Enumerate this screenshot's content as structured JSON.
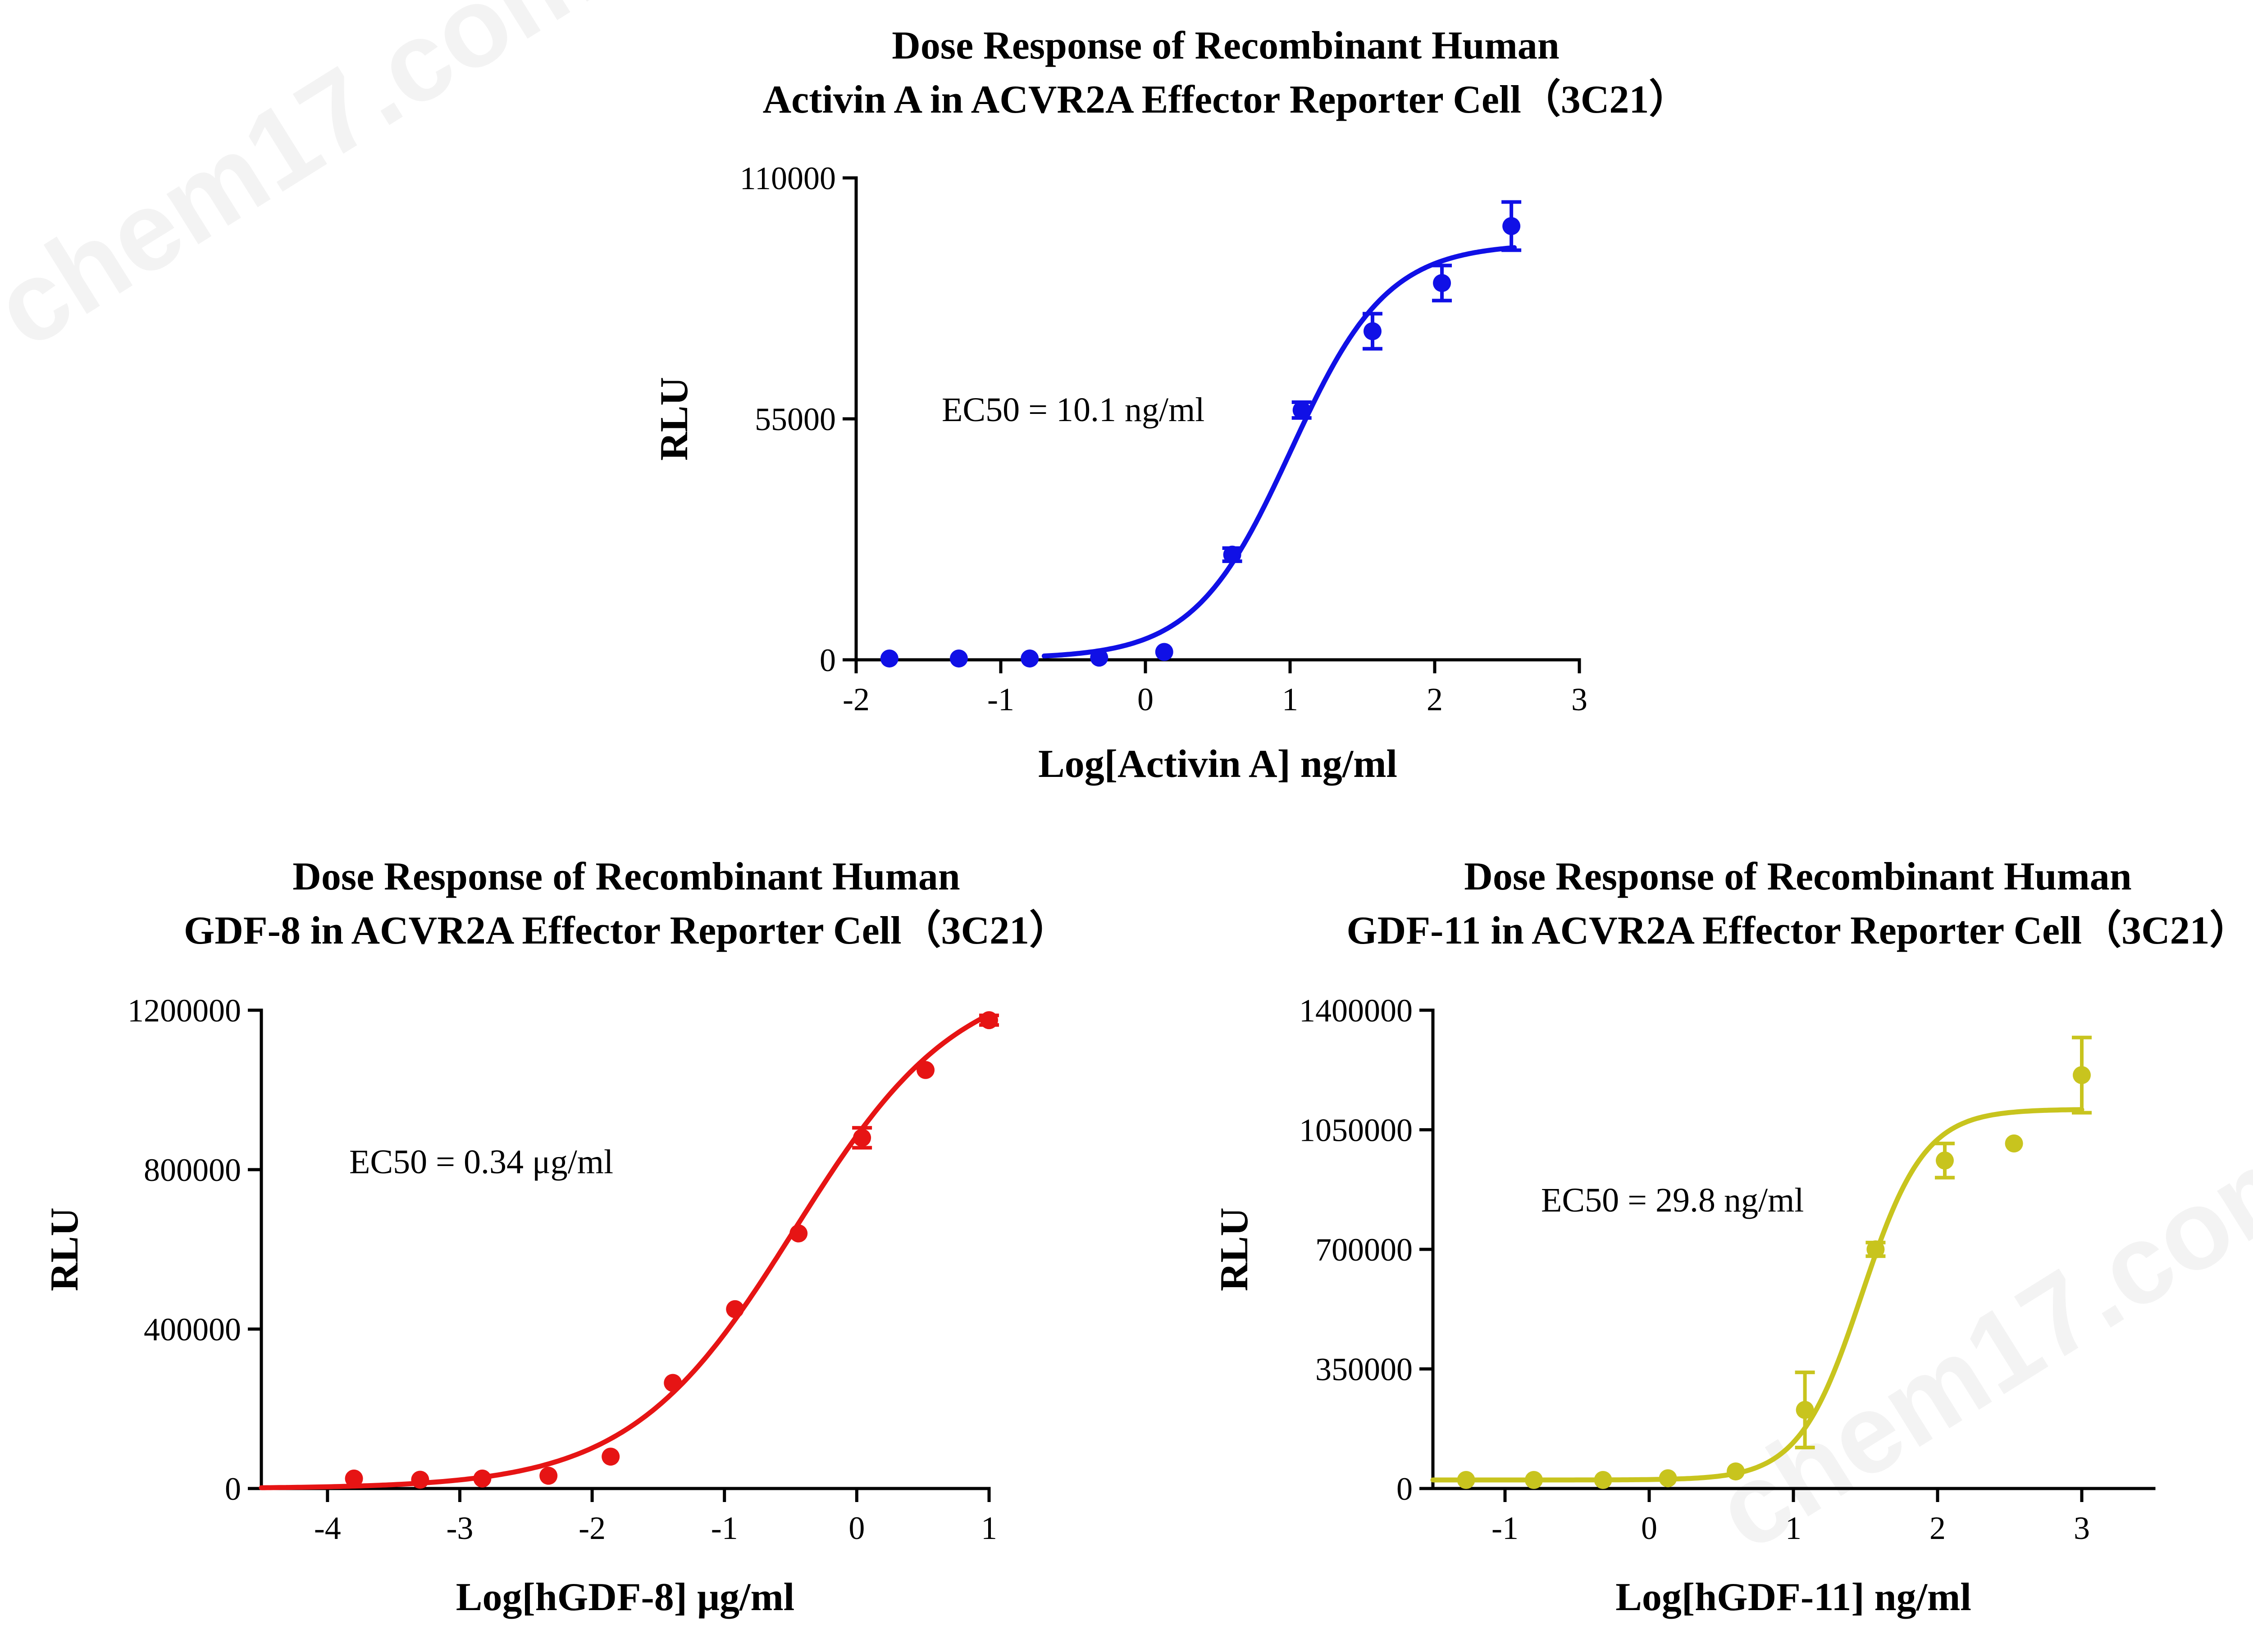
{
  "watermark": "chem17.com",
  "chart_data": [
    {
      "type": "scatter",
      "title": [
        "Dose Response of Recombinant Human",
        "Activin A in ACVR2A Effector Reporter Cell（3C21）"
      ],
      "xlabel": "Log[Activin A] ng/ml",
      "ylabel": "RLU",
      "annotation": "EC50 = 10.1 ng/ml",
      "color": "#1010e6",
      "xlim": [
        -2,
        3
      ],
      "ylim": [
        0,
        110000
      ],
      "xticks": [
        -2,
        -1,
        0,
        1,
        2,
        3
      ],
      "yticks": [
        0,
        55000,
        110000
      ],
      "x": [
        -1.77,
        -1.29,
        -0.8,
        -0.32,
        0.13,
        0.6,
        1.08,
        1.57,
        2.05,
        2.53
      ],
      "y": [
        300,
        300,
        300,
        500,
        1800,
        24000,
        57000,
        75000,
        86000,
        99000
      ],
      "err": [
        0,
        0,
        0,
        0,
        0,
        1500,
        1800,
        4000,
        4000,
        5500
      ],
      "fit": {
        "bottom": 300,
        "top": 95000,
        "log_ec50": 1.004,
        "hill": 1.3,
        "x_range": [
          -0.7,
          2.55
        ]
      }
    },
    {
      "type": "scatter",
      "title": [
        "Dose Response of Recombinant Human",
        "GDF-8 in ACVR2A Effector Reporter Cell（3C21）"
      ],
      "xlabel": "Log[hGDF-8] μg/ml",
      "ylabel": "RLU",
      "annotation": "EC50 = 0.34 μg/ml",
      "color": "#e61414",
      "xlim": [
        -4.5,
        1
      ],
      "ylim": [
        0,
        1200000
      ],
      "xticks": [
        -4,
        -3,
        -2,
        -1,
        0,
        1
      ],
      "yticks": [
        0,
        400000,
        800000,
        1200000
      ],
      "x": [
        -3.8,
        -3.3,
        -2.83,
        -2.33,
        -1.86,
        -1.39,
        -0.92,
        -0.44,
        0.04,
        0.52,
        1.0
      ],
      "y": [
        25000,
        22000,
        25000,
        32000,
        80000,
        265000,
        450000,
        640000,
        880000,
        1050000,
        1175000
      ],
      "err": [
        0,
        0,
        0,
        0,
        0,
        0,
        0,
        0,
        25000,
        0,
        12000
      ],
      "fit": {
        "bottom": 0,
        "top": 1300000,
        "log_ec50": -0.469,
        "hill": 0.7,
        "x_range": [
          -4.5,
          1.0
        ]
      }
    },
    {
      "type": "scatter",
      "title": [
        "Dose Response of Recombinant Human",
        "GDF-11 in ACVR2A Effector Reporter Cell（3C21）"
      ],
      "xlabel": "Log[hGDF-11] ng/ml",
      "ylabel": "RLU",
      "annotation": "EC50 = 29.8 ng/ml",
      "color": "#c8c41e",
      "xlim": [
        -1.5,
        3.5
      ],
      "ylim": [
        0,
        1400000
      ],
      "xticks": [
        -1,
        0,
        1,
        2,
        3
      ],
      "yticks": [
        0,
        350000,
        700000,
        1050000,
        1400000
      ],
      "x": [
        -1.27,
        -0.8,
        -0.32,
        0.13,
        0.6,
        1.08,
        1.57,
        2.05,
        2.53,
        3.0
      ],
      "y": [
        25000,
        25000,
        25000,
        30000,
        50000,
        230000,
        700000,
        960000,
        1010000,
        1210000
      ],
      "err": [
        0,
        0,
        0,
        0,
        0,
        110000,
        20000,
        50000,
        0,
        110000
      ],
      "fit": {
        "bottom": 25000,
        "top": 1110000,
        "log_ec50": 1.474,
        "hill": 2.0,
        "x_range": [
          -1.5,
          3.0
        ]
      }
    }
  ]
}
